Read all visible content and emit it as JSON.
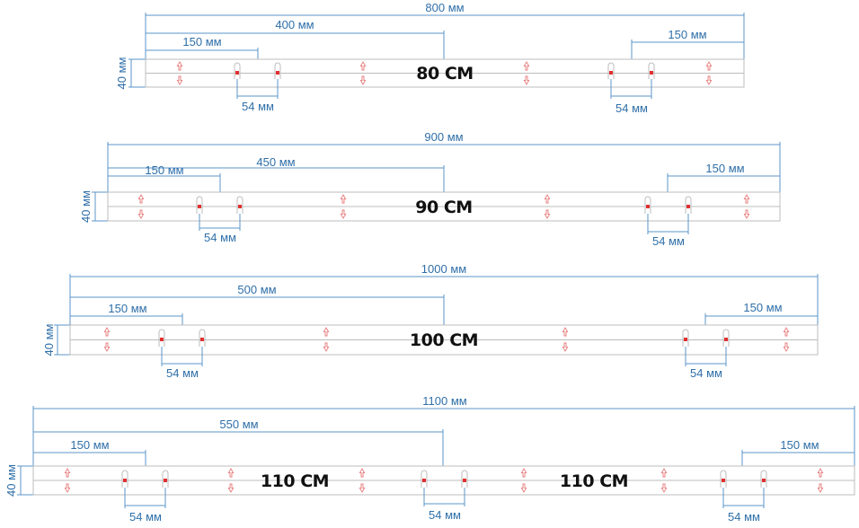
{
  "colors": {
    "dimension_line": "#5b96c8",
    "dimension_text": "#2f6fa8",
    "rail_outline": "#bcbcbc",
    "rail_fill": "#ffffff",
    "hole_marker": "#e03030",
    "arrow_marker": "#e87a7a",
    "label": "#111111"
  },
  "units": "мм",
  "panels": [
    {
      "name": "rail-80",
      "total_mm": 800,
      "labels": {
        "total": "800 мм",
        "half": "400 мм",
        "left_150": "150 мм",
        "right_150": "150 мм",
        "height": "40 мм",
        "gap": "54 мм",
        "center": "80 CM"
      },
      "gaps": 2,
      "center_labels": 1
    },
    {
      "name": "rail-90",
      "total_mm": 900,
      "labels": {
        "total": "900 мм",
        "half": "450 мм",
        "left_150": "150 мм",
        "right_150": "150 мм",
        "height": "40 мм",
        "gap": "54 мм",
        "center": "90 CM"
      },
      "gaps": 2,
      "center_labels": 1
    },
    {
      "name": "rail-100",
      "total_mm": 1000,
      "labels": {
        "total": "1000 мм",
        "half": "500 мм",
        "left_150": "150 мм",
        "right_150": "150 мм",
        "height": "40 мм",
        "gap": "54 мм",
        "center": "100 CM"
      },
      "gaps": 2,
      "center_labels": 1
    },
    {
      "name": "rail-110",
      "total_mm": 1100,
      "labels": {
        "total": "1100 мм",
        "half": "550 мм",
        "left_150": "150 мм",
        "right_150": "150 мм",
        "height": "40 мм",
        "gap": "54 мм",
        "center": "110 CM",
        "center_2": "110 CM"
      },
      "gaps": 3,
      "center_labels": 2
    }
  ]
}
